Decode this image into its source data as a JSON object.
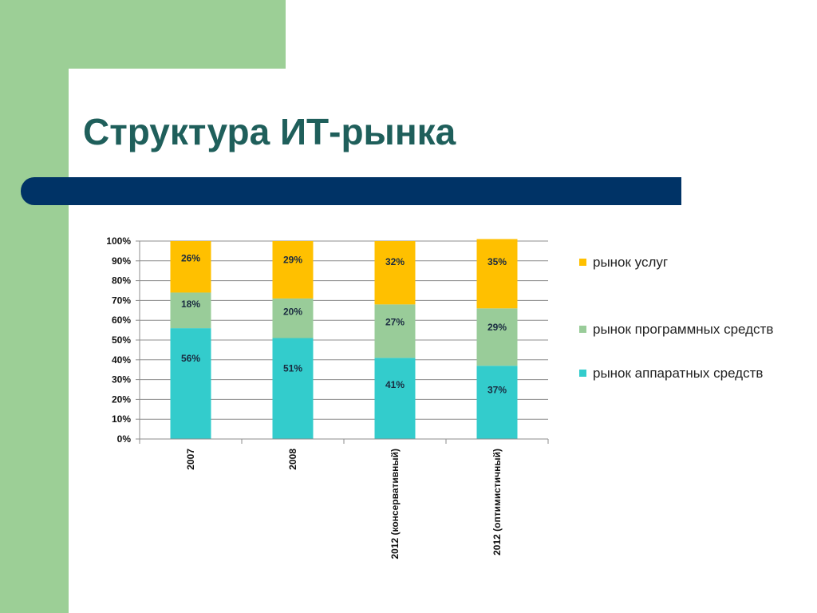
{
  "slide": {
    "title": "Структура ИТ-рынка"
  },
  "colors": {
    "background_accent": "#9ccf96",
    "title_text": "#1f5f5b",
    "title_bar": "#003366"
  },
  "chart_data": {
    "type": "bar",
    "stacked": true,
    "title": "",
    "xlabel": "",
    "ylabel": "",
    "ylim": [
      0,
      100
    ],
    "y_ticks": [
      "0%",
      "10%",
      "20%",
      "30%",
      "40%",
      "50%",
      "60%",
      "70%",
      "80%",
      "90%",
      "100%"
    ],
    "grid": true,
    "legend_position": "right",
    "categories": [
      "2007",
      "2008",
      "2012 (консервативный)",
      "2012 (оптимистичный)"
    ],
    "series": [
      {
        "name": "рынок аппаратных средств",
        "color": "#33cccc",
        "values": [
          56,
          51,
          41,
          37
        ],
        "labels": [
          "56%",
          "51%",
          "41%",
          "37%"
        ]
      },
      {
        "name": "рынок программных средств",
        "color": "#99cc99",
        "values": [
          18,
          20,
          27,
          29
        ],
        "labels": [
          "18%",
          "20%",
          "27%",
          "29%"
        ]
      },
      {
        "name": "рынок услуг",
        "color": "#ffc000",
        "values": [
          26,
          29,
          32,
          35
        ],
        "labels": [
          "26%",
          "29%",
          "32%",
          "35%"
        ]
      }
    ],
    "legend_order": [
      "рынок услуг",
      "рынок программных средств",
      "рынок аппаратных средств"
    ]
  }
}
